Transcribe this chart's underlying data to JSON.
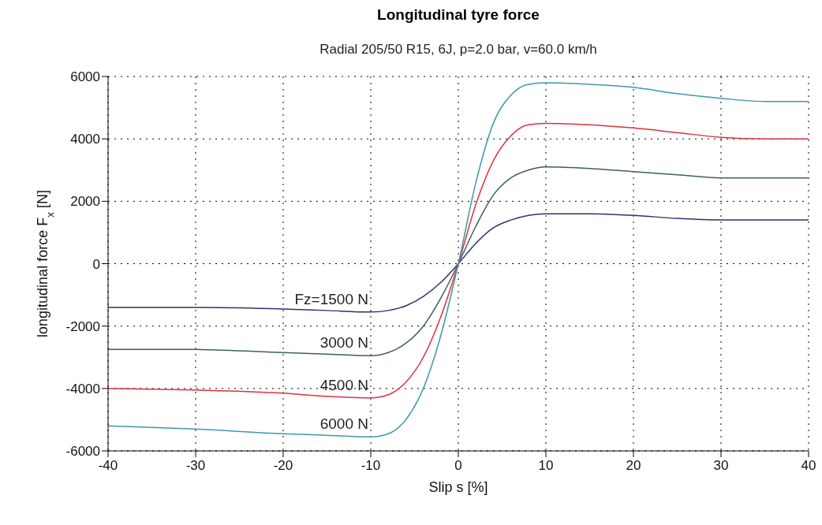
{
  "chart_data": {
    "type": "line",
    "title": "Longitudinal tyre force",
    "subtitle": "Radial 205/50 R15, 6J, p=2.0 bar, v=60.0 km/h",
    "xlabel": "Slip s [%]",
    "ylabel": "longitudinal force  F$_{x}$ [N]",
    "x": [
      -40,
      -30,
      -20,
      -15,
      -10,
      -8,
      -6,
      -4,
      -2,
      0,
      2,
      4,
      6,
      8,
      10,
      15,
      20,
      25,
      30,
      35,
      40
    ],
    "series": [
      {
        "name": "Fz=1500 N",
        "color": "#34306e",
        "values": [
          -1400,
          -1400,
          -1450,
          -1500,
          -1550,
          -1500,
          -1350,
          -1050,
          -600,
          0,
          650,
          1150,
          1400,
          1550,
          1600,
          1600,
          1550,
          1450,
          1400,
          1400,
          1400
        ]
      },
      {
        "name": "3000 N",
        "color": "#3d6058",
        "values": [
          -2750,
          -2750,
          -2850,
          -2900,
          -2950,
          -2850,
          -2550,
          -2000,
          -1100,
          0,
          1200,
          2200,
          2750,
          3000,
          3100,
          3050,
          2950,
          2850,
          2750,
          2750,
          2750
        ]
      },
      {
        "name": "4500 N",
        "color": "#e0303a",
        "values": [
          -4000,
          -4050,
          -4150,
          -4250,
          -4300,
          -4200,
          -3800,
          -3000,
          -1700,
          0,
          1900,
          3300,
          4100,
          4450,
          4500,
          4450,
          4350,
          4200,
          4050,
          4000,
          4000
        ]
      },
      {
        "name": "6000 N",
        "color": "#3f98a8",
        "values": [
          -5200,
          -5300,
          -5450,
          -5500,
          -5550,
          -5450,
          -5000,
          -4000,
          -2300,
          0,
          2600,
          4500,
          5400,
          5750,
          5800,
          5750,
          5650,
          5450,
          5300,
          5200,
          5200
        ]
      }
    ],
    "xlim": [
      -40,
      40
    ],
    "xticks": [
      -40,
      -30,
      -20,
      -10,
      0,
      10,
      20,
      30,
      40
    ],
    "ylim": [
      -6000,
      6000
    ],
    "yticks": [
      -6000,
      -4000,
      -2000,
      0,
      2000,
      4000,
      6000
    ],
    "grid": true,
    "legend": false,
    "marker": "none",
    "line_style": "solid"
  }
}
